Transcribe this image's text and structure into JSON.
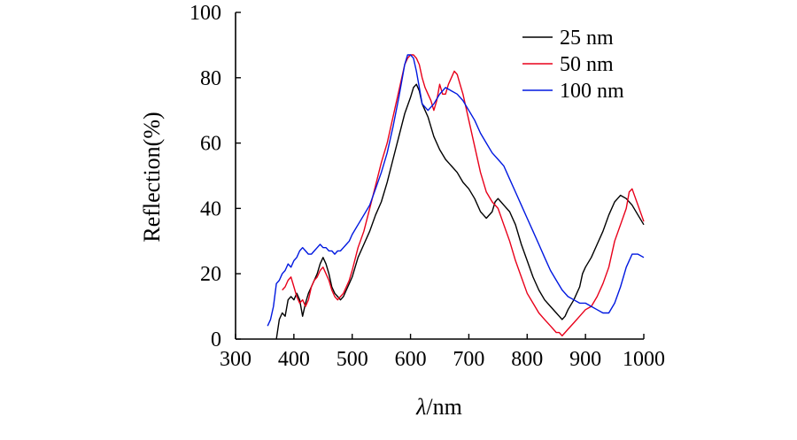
{
  "chart_data": {
    "type": "line",
    "title": "",
    "xlabel_symbol": "λ",
    "xlabel_unit": "/nm",
    "ylabel": "Reflection(%)",
    "xlim": [
      300,
      1000
    ],
    "ylim": [
      0,
      100
    ],
    "xticks": [
      300,
      400,
      500,
      600,
      700,
      800,
      900,
      1000
    ],
    "yticks": [
      0,
      20,
      40,
      60,
      80,
      100
    ],
    "xtick_labels": [
      "300",
      "400",
      "500",
      "600",
      "700",
      "800",
      "900",
      "1000"
    ],
    "ytick_labels": [
      "0",
      "20",
      "40",
      "60",
      "80",
      "100"
    ],
    "legend_position": "top-right",
    "series": [
      {
        "name": "25 nm",
        "color": "#000000",
        "x": [
          370,
          375,
          380,
          385,
          390,
          395,
          400,
          405,
          410,
          415,
          420,
          425,
          430,
          435,
          440,
          445,
          450,
          455,
          460,
          465,
          470,
          475,
          480,
          485,
          490,
          495,
          500,
          510,
          520,
          530,
          540,
          550,
          560,
          570,
          580,
          590,
          600,
          605,
          610,
          615,
          620,
          630,
          640,
          650,
          660,
          670,
          680,
          690,
          700,
          710,
          720,
          725,
          730,
          740,
          745,
          750,
          755,
          760,
          770,
          780,
          790,
          800,
          810,
          820,
          830,
          840,
          850,
          855,
          860,
          865,
          870,
          880,
          890,
          895,
          900,
          910,
          920,
          930,
          940,
          950,
          955,
          960,
          970,
          980,
          990,
          1000
        ],
        "y": [
          0,
          6,
          8,
          7,
          12,
          13,
          12,
          14,
          12,
          7,
          11,
          14,
          16,
          18,
          20,
          23,
          25,
          23,
          20,
          16,
          14,
          13,
          12,
          13,
          15,
          17,
          19,
          25,
          29,
          33,
          38,
          42,
          48,
          55,
          62,
          69,
          74,
          77,
          78,
          76,
          72,
          68,
          62,
          58,
          55,
          53,
          51,
          48,
          46,
          43,
          39,
          38,
          37,
          39,
          42,
          43,
          42,
          41,
          39,
          35,
          29,
          24,
          19,
          15,
          12,
          10,
          8,
          7,
          6,
          7,
          9,
          12,
          16,
          20,
          22,
          25,
          29,
          33,
          38,
          42,
          43,
          44,
          43,
          41,
          38,
          35
        ]
      },
      {
        "name": "50 nm",
        "color": "#e8001a",
        "x": [
          380,
          385,
          390,
          395,
          400,
          405,
          410,
          415,
          420,
          425,
          430,
          435,
          440,
          445,
          450,
          455,
          460,
          465,
          470,
          475,
          480,
          485,
          490,
          495,
          500,
          510,
          520,
          530,
          540,
          550,
          560,
          570,
          580,
          590,
          595,
          600,
          605,
          610,
          615,
          620,
          625,
          630,
          635,
          640,
          645,
          650,
          655,
          660,
          665,
          670,
          675,
          680,
          685,
          690,
          700,
          710,
          720,
          730,
          740,
          750,
          760,
          770,
          780,
          790,
          800,
          810,
          820,
          830,
          840,
          850,
          855,
          860,
          865,
          870,
          880,
          890,
          900,
          910,
          920,
          930,
          940,
          950,
          960,
          970,
          975,
          980,
          990,
          1000
        ],
        "y": [
          15,
          16,
          18,
          19,
          16,
          13,
          11,
          12,
          10,
          12,
          16,
          18,
          19,
          21,
          22,
          20,
          18,
          15,
          13,
          12,
          13,
          14,
          16,
          18,
          21,
          28,
          33,
          40,
          47,
          54,
          60,
          68,
          76,
          84,
          86,
          87,
          87,
          86,
          84,
          80,
          77,
          75,
          73,
          70,
          73,
          78,
          75,
          75,
          78,
          80,
          82,
          81,
          78,
          75,
          67,
          59,
          51,
          45,
          42,
          40,
          35,
          30,
          24,
          19,
          14,
          11,
          8,
          6,
          4,
          2,
          2,
          1,
          2,
          3,
          5,
          7,
          9,
          10,
          13,
          17,
          22,
          30,
          35,
          40,
          45,
          46,
          41,
          36
        ]
      },
      {
        "name": "100 nm",
        "color": "#0018e0",
        "x": [
          355,
          360,
          365,
          370,
          375,
          380,
          385,
          390,
          395,
          400,
          405,
          410,
          415,
          420,
          425,
          430,
          435,
          440,
          445,
          450,
          455,
          460,
          465,
          470,
          475,
          480,
          485,
          490,
          495,
          500,
          510,
          520,
          530,
          540,
          550,
          560,
          570,
          580,
          590,
          595,
          600,
          605,
          610,
          615,
          620,
          630,
          640,
          650,
          660,
          670,
          680,
          690,
          700,
          710,
          720,
          730,
          740,
          750,
          760,
          770,
          780,
          790,
          800,
          810,
          820,
          830,
          840,
          850,
          860,
          870,
          880,
          890,
          900,
          910,
          920,
          930,
          940,
          950,
          960,
          970,
          980,
          990,
          1000
        ],
        "y": [
          4,
          6,
          10,
          17,
          18,
          20,
          21,
          23,
          22,
          24,
          25,
          27,
          28,
          27,
          26,
          26,
          27,
          28,
          29,
          28,
          28,
          27,
          27,
          26,
          27,
          27,
          28,
          29,
          30,
          32,
          35,
          38,
          41,
          46,
          51,
          57,
          65,
          74,
          84,
          87,
          87,
          86,
          82,
          77,
          72,
          70,
          72,
          75,
          77,
          76,
          75,
          73,
          70,
          67,
          63,
          60,
          57,
          55,
          53,
          49,
          45,
          41,
          37,
          33,
          29,
          25,
          21,
          18,
          15,
          13,
          12,
          11,
          11,
          10,
          9,
          8,
          8,
          11,
          16,
          22,
          26,
          26,
          25
        ]
      }
    ]
  }
}
